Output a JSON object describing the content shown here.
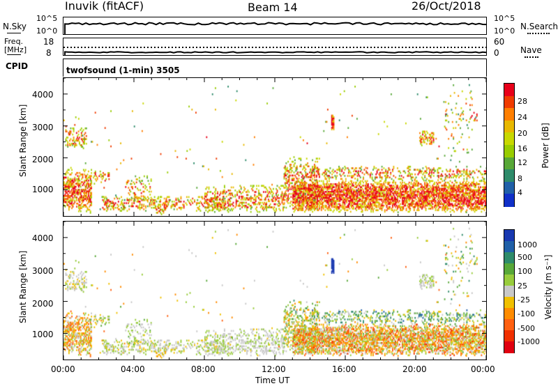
{
  "header": {
    "station": "Inuvik (fitACF)",
    "beam": "Beam 14",
    "date": "26/Oct/2018"
  },
  "nsky_panel": {
    "left_label": "N.Sky",
    "left_ticks": [
      "10^5",
      "10^0"
    ],
    "right_ticks": [
      "10^5",
      "10^0"
    ],
    "right_label": "N.Search"
  },
  "freq_panel": {
    "left_label_1": "Freq.",
    "left_label_2": "[MHz]",
    "left_ticks": [
      "18",
      "8"
    ],
    "right_ticks": [
      "60",
      "0"
    ],
    "right_label": "Nave",
    "cpid_label": "CPID"
  },
  "cpid_panel": {
    "text": "twofsound (1-min) 3505"
  },
  "power_panel": {
    "ylabel": "Slant Range [km]",
    "yticks": [
      "4000",
      "3000",
      "2000",
      "1000"
    ],
    "colorbar_label": "Power [dB]",
    "colorbar_ticks": [
      "28",
      "24",
      "20",
      "16",
      "12",
      "8",
      "4"
    ],
    "colors": [
      "#e8001a",
      "#f03c00",
      "#ff7f00",
      "#e8b800",
      "#c8d800",
      "#98cc00",
      "#58a838",
      "#2e8b6a",
      "#2060a8",
      "#1030c8"
    ]
  },
  "velocity_panel": {
    "ylabel": "Slant Range [km]",
    "yticks": [
      "4000",
      "3000",
      "2000",
      "1000"
    ],
    "colorbar_label": "Velocity [m s⁻¹]",
    "colorbar_ticks": [
      "1000",
      "500",
      "100",
      "25",
      "-25",
      "-100",
      "-500",
      "-1000"
    ],
    "colors": [
      "#1838b0",
      "#2060a8",
      "#2e8b6a",
      "#58a838",
      "#98cc3c",
      "#c8c8c8",
      "#f0c000",
      "#ff8c00",
      "#ff6010",
      "#f03000",
      "#e00010"
    ]
  },
  "xaxis": {
    "ticks": [
      "00:00",
      "04:00",
      "08:00",
      "12:00",
      "16:00",
      "20:00",
      "00:00"
    ],
    "label": "Time UT"
  },
  "chart_data": {
    "type": "heatmap",
    "title": "Inuvik (fitACF)  Beam 14  26/Oct/2018",
    "xlabel": "Time UT",
    "ylabel": "Slant Range [km]",
    "x_range_hours": [
      0,
      24
    ],
    "y_range_km": [
      180,
      4500
    ],
    "power_range_db": [
      0,
      30
    ],
    "velocity_range_ms": [
      -1000,
      1000
    ],
    "regions": [
      {
        "t0": 0.0,
        "t1": 1.6,
        "r0": 300,
        "r1": 1700,
        "p": 0.55,
        "vlo": -600,
        "vhi": 200
      },
      {
        "t0": 0.1,
        "t1": 1.3,
        "r0": 2300,
        "r1": 3000,
        "p": 0.3,
        "vlo": -150,
        "vhi": 150
      },
      {
        "t0": 1.5,
        "t1": 2.6,
        "r0": 1200,
        "r1": 1650,
        "p": 0.35,
        "vlo": -200,
        "vhi": 300
      },
      {
        "t0": 2.2,
        "t1": 9.5,
        "r0": 350,
        "r1": 850,
        "p": 0.32,
        "vlo": -150,
        "vhi": 250
      },
      {
        "t0": 3.5,
        "t1": 5.0,
        "r0": 600,
        "r1": 1500,
        "p": 0.18,
        "vlo": -100,
        "vhi": 300
      },
      {
        "t0": 5.2,
        "t1": 5.8,
        "r0": 250,
        "r1": 550,
        "p": 0.4,
        "vlo": -300,
        "vhi": 100
      },
      {
        "t0": 8.0,
        "t1": 12.5,
        "r0": 300,
        "r1": 1200,
        "p": 0.33,
        "vlo": -100,
        "vhi": 200
      },
      {
        "t0": 12.5,
        "t1": 14.5,
        "r0": 350,
        "r1": 2100,
        "p": 0.35,
        "vlo": -400,
        "vhi": 500
      },
      {
        "t0": 13.0,
        "t1": 24.0,
        "r0": 300,
        "r1": 1350,
        "p": 0.7,
        "vlo": -700,
        "vhi": 300
      },
      {
        "t0": 14.0,
        "t1": 24.0,
        "r0": 1300,
        "r1": 1800,
        "p": 0.25,
        "vlo": -200,
        "vhi": 700
      },
      {
        "t0": 20.2,
        "t1": 21.0,
        "r0": 2400,
        "r1": 2900,
        "p": 0.45,
        "vlo": -100,
        "vhi": 200
      },
      {
        "t0": 21.5,
        "t1": 23.5,
        "r0": 2000,
        "r1": 4400,
        "p": 0.06,
        "vlo": -300,
        "vhi": 600
      },
      {
        "t0": 15.2,
        "t1": 15.35,
        "r0": 2900,
        "r1": 3400,
        "p": 0.9,
        "vlo": 900,
        "vhi": 1000
      },
      {
        "t0": 0.0,
        "t1": 24.0,
        "r0": 180,
        "r1": 4500,
        "p": 0.004,
        "vlo": -500,
        "vhi": 500
      }
    ]
  }
}
